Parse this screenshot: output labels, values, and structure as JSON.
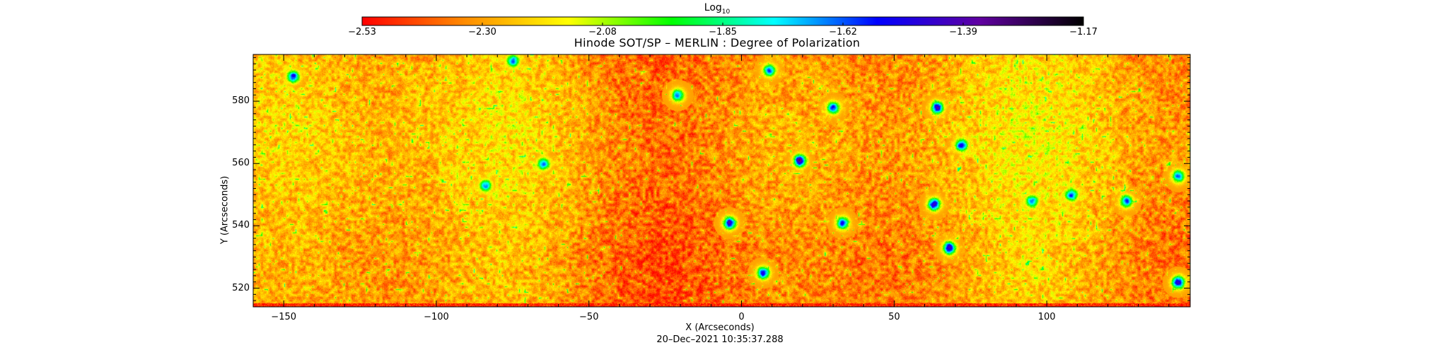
{
  "colorbar": {
    "title": "Log",
    "title_subscript": "10",
    "tick_labels": [
      "−2.53",
      "−2.30",
      "−2.08",
      "−1.85",
      "−1.62",
      "−1.39",
      "−1.17"
    ],
    "range": [
      -2.53,
      -1.17
    ],
    "colors": [
      "#ff0000",
      "#ff8c00",
      "#ffff00",
      "#00ff00",
      "#00ffff",
      "#0000ff",
      "#6000a0",
      "#000000"
    ]
  },
  "chart_data": {
    "type": "heatmap",
    "title": "Hinode SOT/SP – MERLIN : Degree of Polarization",
    "xlabel": "X (Arcseconds)",
    "ylabel": "Y (Arcseconds)",
    "xlim": [
      -160,
      147
    ],
    "ylim": [
      514,
      595
    ],
    "x_ticks": [
      -150,
      -100,
      -50,
      0,
      50,
      100
    ],
    "x_tick_labels": [
      "−150",
      "−100",
      "−50",
      "0",
      "50",
      "100"
    ],
    "y_ticks": [
      520,
      540,
      560,
      580
    ],
    "y_tick_labels": [
      "520",
      "540",
      "560",
      "580"
    ],
    "value_description": "log10 degree of polarization",
    "value_range": [
      -2.53,
      -1.17
    ],
    "background_level": -2.3,
    "features": [
      {
        "x": 19,
        "y": 561,
        "value": -1.2
      },
      {
        "x": -4,
        "y": 541,
        "value": -1.3
      },
      {
        "x": 63,
        "y": 547,
        "value": -1.3
      },
      {
        "x": 68,
        "y": 533,
        "value": -1.25
      },
      {
        "x": 72,
        "y": 566,
        "value": -1.35
      },
      {
        "x": 64,
        "y": 578,
        "value": -1.3
      },
      {
        "x": 143,
        "y": 522,
        "value": -1.25
      },
      {
        "x": 30,
        "y": 578,
        "value": -1.45
      },
      {
        "x": -147,
        "y": 588,
        "value": -1.4
      },
      {
        "x": 7,
        "y": 525,
        "value": -1.4
      },
      {
        "x": -65,
        "y": 560,
        "value": -1.5
      },
      {
        "x": -75,
        "y": 593,
        "value": -1.5
      },
      {
        "x": 95,
        "y": 548,
        "value": -1.5
      },
      {
        "x": 108,
        "y": 550,
        "value": -1.45
      },
      {
        "x": 126,
        "y": 548,
        "value": -1.5
      },
      {
        "x": 33,
        "y": 541,
        "value": -1.45
      },
      {
        "x": -84,
        "y": 553,
        "value": -1.55
      },
      {
        "x": 143,
        "y": 556,
        "value": -1.5
      },
      {
        "x": -21,
        "y": 582,
        "value": -1.55
      },
      {
        "x": 9,
        "y": 590,
        "value": -1.5
      }
    ],
    "grid": false,
    "colorbar_placement": "top"
  },
  "timestamp": "20–Dec–2021 10:35:37.288"
}
